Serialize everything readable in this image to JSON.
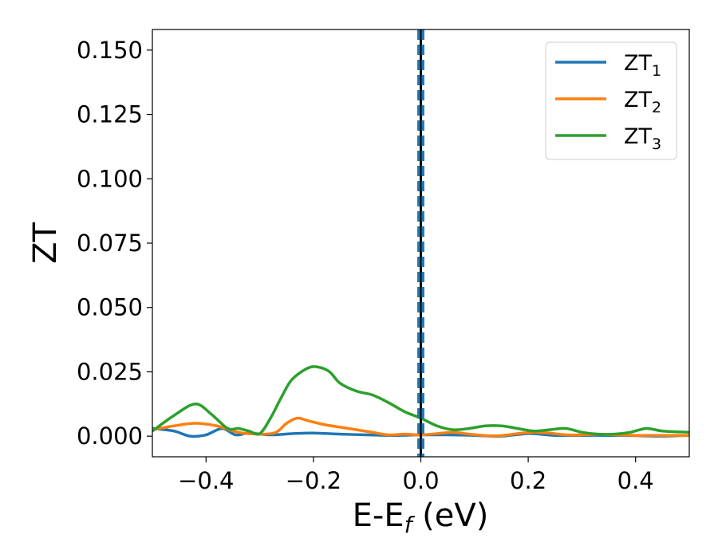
{
  "chart_data": {
    "type": "line",
    "xlabel": "E-E",
    "xlabel_subscript": "f",
    "xlabel_unit": " (eV)",
    "ylabel": "ZT",
    "xlim": [
      -0.5,
      0.5
    ],
    "ylim": [
      -0.008,
      0.158
    ],
    "xticks": [
      -0.4,
      -0.2,
      0.0,
      0.2,
      0.4
    ],
    "xtick_labels": [
      "−0.4",
      "−0.2",
      "0.0",
      "0.2",
      "0.4"
    ],
    "yticks": [
      0.0,
      0.025,
      0.05,
      0.075,
      0.1,
      0.125,
      0.15
    ],
    "ytick_labels": [
      "0.000",
      "0.025",
      "0.050",
      "0.075",
      "0.100",
      "0.125",
      "0.150"
    ],
    "grid": false,
    "legend_position": "top-right",
    "vertical_lines": [
      {
        "x": 0.0,
        "color": "#000000",
        "style": "solid"
      },
      {
        "x": -0.004,
        "color": "#1f77b4",
        "style": "dashed"
      },
      {
        "x": 0.004,
        "color": "#1f77b4",
        "style": "dashed"
      }
    ],
    "series": [
      {
        "name": "ZT",
        "name_subscript": "1",
        "color": "#1f77b4",
        "x": [
          -0.5,
          -0.46,
          -0.43,
          -0.4,
          -0.37,
          -0.345,
          -0.32,
          -0.28,
          -0.24,
          -0.2,
          -0.15,
          -0.1,
          -0.05,
          0.0,
          0.05,
          0.1,
          0.15,
          0.2,
          0.25,
          0.3,
          0.35,
          0.4,
          0.45,
          0.5
        ],
        "y": [
          0.003,
          0.002,
          0.0,
          0.0005,
          0.003,
          0.0005,
          0.0012,
          0.0005,
          0.001,
          0.0012,
          0.0008,
          0.0005,
          0.0003,
          0.0005,
          0.0005,
          0.0003,
          0.0,
          0.001,
          0.0003,
          0.0003,
          0.0003,
          0.0002,
          0.0,
          0.0003
        ]
      },
      {
        "name": "ZT",
        "name_subscript": "2",
        "color": "#ff7f0e",
        "x": [
          -0.5,
          -0.46,
          -0.42,
          -0.38,
          -0.34,
          -0.3,
          -0.27,
          -0.25,
          -0.23,
          -0.21,
          -0.18,
          -0.15,
          -0.12,
          -0.09,
          -0.06,
          -0.03,
          0.0,
          0.03,
          0.06,
          0.09,
          0.12,
          0.15,
          0.18,
          0.21,
          0.24,
          0.27,
          0.3,
          0.33,
          0.36,
          0.4,
          0.45,
          0.5
        ],
        "y": [
          0.0025,
          0.004,
          0.005,
          0.004,
          0.0015,
          0.0008,
          0.0015,
          0.005,
          0.007,
          0.006,
          0.0045,
          0.0035,
          0.0025,
          0.0015,
          0.0005,
          0.0008,
          0.0005,
          0.001,
          0.0015,
          0.0008,
          0.0002,
          0.0002,
          0.001,
          0.0015,
          0.0012,
          0.0005,
          0.0005,
          0.0008,
          0.0005,
          0.0003,
          0.0003,
          0.0003
        ]
      },
      {
        "name": "ZT",
        "name_subscript": "3",
        "color": "#2ca02c",
        "x": [
          -0.5,
          -0.46,
          -0.42,
          -0.39,
          -0.36,
          -0.34,
          -0.32,
          -0.3,
          -0.28,
          -0.26,
          -0.24,
          -0.21,
          -0.19,
          -0.17,
          -0.15,
          -0.12,
          -0.09,
          -0.06,
          -0.03,
          0.0,
          0.03,
          0.06,
          0.09,
          0.12,
          0.15,
          0.18,
          0.21,
          0.24,
          0.27,
          0.3,
          0.33,
          0.36,
          0.39,
          0.42,
          0.45,
          0.5
        ],
        "y": [
          0.002,
          0.008,
          0.0125,
          0.0085,
          0.003,
          0.003,
          0.002,
          0.001,
          0.007,
          0.015,
          0.022,
          0.0265,
          0.0268,
          0.025,
          0.0205,
          0.0175,
          0.016,
          0.013,
          0.0095,
          0.007,
          0.004,
          0.0025,
          0.003,
          0.004,
          0.004,
          0.003,
          0.002,
          0.0025,
          0.003,
          0.0015,
          0.0008,
          0.0008,
          0.0015,
          0.003,
          0.002,
          0.0015
        ]
      }
    ]
  }
}
